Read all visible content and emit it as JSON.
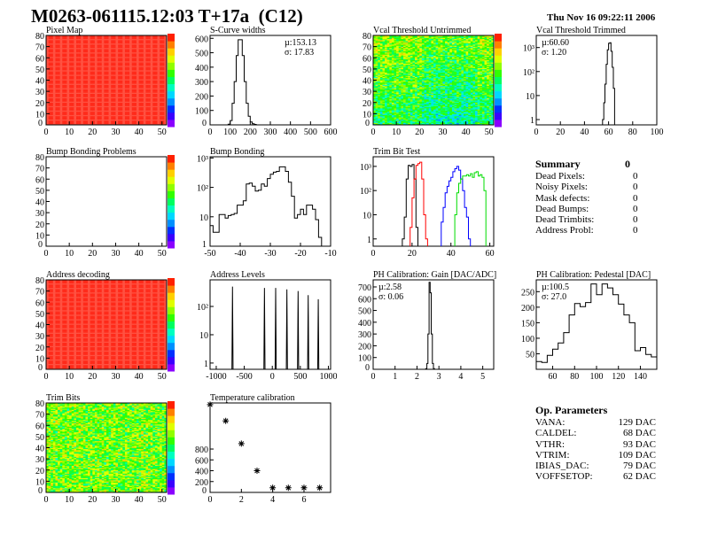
{
  "header": {
    "title": "M0263-061115.12:03 T+17a  (C12)",
    "date": "Thu Nov 16 09:22:11 2006"
  },
  "summary": {
    "title": "Summary",
    "total": "0",
    "rows": [
      {
        "label": "Dead Pixels:",
        "value": "0"
      },
      {
        "label": "Noisy Pixels:",
        "value": "0"
      },
      {
        "label": "Mask defects:",
        "value": "0"
      },
      {
        "label": "Dead Bumps:",
        "value": "0"
      },
      {
        "label": "Dead Trimbits:",
        "value": "0"
      },
      {
        "label": "Address Probl:",
        "value": "0"
      }
    ]
  },
  "op_parameters": {
    "title": "Op. Parameters",
    "rows": [
      {
        "label": "VANA:",
        "value": "129 DAC"
      },
      {
        "label": "CALDEL:",
        "value": "68 DAC"
      },
      {
        "label": "VTHR:",
        "value": "93 DAC"
      },
      {
        "label": "VTRIM:",
        "value": "109 DAC"
      },
      {
        "label": "IBIAS_DAC:",
        "value": "79 DAC"
      },
      {
        "label": "VOFFSETOP:",
        "value": "62 DAC"
      }
    ]
  },
  "chart_data": [
    {
      "type": "heatmap",
      "title": "Pixel Map",
      "xlim": [
        0,
        52
      ],
      "ylim": [
        0,
        80
      ],
      "xticks": [
        "0",
        "10",
        "20",
        "30",
        "40",
        "50"
      ],
      "yticks": [
        "0",
        "10",
        "20",
        "30",
        "40",
        "50",
        "60",
        "70",
        "80"
      ],
      "colorbar": true,
      "fill": "uniform",
      "color": "#ff2a1a"
    },
    {
      "type": "bar",
      "title": "S-Curve widths",
      "xlim": [
        0,
        600
      ],
      "ylim": [
        0,
        620
      ],
      "xticks": [
        "0",
        "100",
        "200",
        "300",
        "400",
        "500",
        "600"
      ],
      "yticks": [
        "0",
        "100",
        "200",
        "300",
        "400",
        "500",
        "600"
      ],
      "stats": [
        "µ:153.13",
        "σ: 17.83"
      ],
      "bin_width": 10,
      "x": [
        90,
        100,
        110,
        120,
        130,
        140,
        150,
        160,
        170,
        180,
        190,
        200,
        210,
        220
      ],
      "values": [
        5,
        30,
        150,
        300,
        480,
        590,
        590,
        480,
        300,
        150,
        60,
        20,
        8,
        3
      ]
    },
    {
      "type": "heatmap",
      "title": "Vcal Threshold Untrimmed",
      "xlim": [
        0,
        52
      ],
      "ylim": [
        0,
        80
      ],
      "xticks": [
        "0",
        "10",
        "20",
        "30",
        "40",
        "50"
      ],
      "yticks": [
        "0",
        "10",
        "20",
        "30",
        "40",
        "50",
        "60",
        "70",
        "80"
      ],
      "colorbar": true,
      "fill": "noisy-green-cyan"
    },
    {
      "type": "bar",
      "title": "Vcal Threshold Trimmed",
      "log_y": true,
      "xlim": [
        0,
        100
      ],
      "ylim": [
        0.6,
        3200
      ],
      "xticks": [
        "0",
        "20",
        "40",
        "60",
        "80",
        "100"
      ],
      "yticks": [
        {
          "v": 1,
          "t": "1"
        },
        {
          "v": 10,
          "t": "10"
        },
        {
          "v": 100,
          "t": "10²"
        },
        {
          "v": 1000,
          "t": "10³"
        }
      ],
      "stats": [
        "µ:60.60",
        "σ: 1.20"
      ],
      "bin_width": 1,
      "x": [
        55,
        56,
        57,
        58,
        59,
        60,
        61,
        62,
        63,
        64
      ],
      "values": [
        1,
        5,
        30,
        200,
        800,
        1500,
        1600,
        700,
        150,
        20
      ]
    },
    {
      "type": "heatmap",
      "title": "Bump Bonding Problems",
      "xlim": [
        0,
        52
      ],
      "ylim": [
        0,
        80
      ],
      "xticks": [
        "0",
        "10",
        "20",
        "30",
        "40",
        "50"
      ],
      "yticks": [
        "0",
        "10",
        "20",
        "30",
        "40",
        "50",
        "60",
        "70",
        "80"
      ],
      "colorbar": true,
      "fill": "empty"
    },
    {
      "type": "bar",
      "title": "Bump Bonding",
      "log_y": true,
      "xlim": [
        -50,
        -10
      ],
      "ylim": [
        1,
        1100
      ],
      "xticks": [
        "-50",
        "-40",
        "-30",
        "-20",
        "-10"
      ],
      "yticks": [
        {
          "v": 1,
          "t": "1"
        },
        {
          "v": 10,
          "t": "10"
        },
        {
          "v": 100,
          "t": "10²"
        },
        {
          "v": 1000,
          "t": "10³"
        }
      ],
      "bin_width": 1,
      "x": [
        -50,
        -49,
        -48,
        -47,
        -46,
        -45,
        -44,
        -43,
        -42,
        -41,
        -40,
        -39,
        -38,
        -37,
        -36,
        -35,
        -34,
        -33,
        -32,
        -31,
        -30,
        -29,
        -28,
        -27,
        -26,
        -25,
        -24,
        -23,
        -22,
        -21,
        -20,
        -19,
        -18,
        -17,
        -16,
        -15,
        -14,
        -13
      ],
      "values": [
        5,
        3,
        3,
        12,
        12,
        9,
        11,
        12,
        13,
        25,
        25,
        35,
        130,
        140,
        110,
        75,
        80,
        130,
        110,
        200,
        280,
        330,
        350,
        500,
        500,
        350,
        150,
        50,
        9,
        12,
        18,
        12,
        25,
        25,
        18,
        8,
        2,
        1
      ]
    },
    {
      "type": "bar",
      "title": "Trim Bit Test",
      "log_y": true,
      "xlim": [
        0,
        62
      ],
      "ylim": [
        0.5,
        2500
      ],
      "xticks": [
        "0",
        "20",
        "40",
        "60"
      ],
      "yticks": [
        {
          "v": 1,
          "t": "1"
        },
        {
          "v": 10,
          "t": "10"
        },
        {
          "v": 100,
          "t": "10²"
        },
        {
          "v": 1000,
          "t": "10³"
        }
      ],
      "bin_width": 1,
      "series": [
        {
          "color": "#000000",
          "x": [
            15,
            16,
            17,
            18,
            19,
            20,
            21,
            22
          ],
          "values": [
            1,
            8,
            300,
            1100,
            1000,
            1200,
            300,
            3
          ]
        },
        {
          "color": "#ff0000",
          "x": [
            19,
            20,
            21,
            22,
            23,
            24,
            25,
            26,
            27
          ],
          "values": [
            3,
            50,
            300,
            1100,
            1300,
            1500,
            300,
            10,
            1
          ]
        },
        {
          "color": "#0000ff",
          "x": [
            35,
            36,
            37,
            38,
            39,
            40,
            41,
            42,
            43,
            44,
            45,
            46,
            47,
            48,
            49
          ],
          "values": [
            5,
            20,
            80,
            150,
            250,
            350,
            600,
            800,
            1000,
            700,
            300,
            100,
            20,
            8,
            1
          ]
        },
        {
          "color": "#00dd00",
          "x": [
            42,
            43,
            44,
            45,
            46,
            47,
            48,
            49,
            50,
            51,
            52,
            53,
            54,
            55,
            56,
            57
          ],
          "values": [
            10,
            80,
            200,
            300,
            400,
            400,
            450,
            400,
            500,
            350,
            550,
            600,
            400,
            450,
            350,
            100
          ]
        }
      ]
    },
    {
      "type": "heatmap",
      "title": "Address decoding",
      "xlim": [
        0,
        52
      ],
      "ylim": [
        0,
        80
      ],
      "xticks": [
        "0",
        "10",
        "20",
        "30",
        "40",
        "50"
      ],
      "yticks": [
        "0",
        "10",
        "20",
        "30",
        "40",
        "50",
        "60",
        "70",
        "80"
      ],
      "colorbar": true,
      "fill": "uniform",
      "color": "#ff2a1a"
    },
    {
      "type": "bar",
      "title": "Address Levels",
      "log_y": true,
      "xlim": [
        -1110,
        1040
      ],
      "ylim": [
        0.6,
        870
      ],
      "xticks": [
        {
          "v": -1000,
          "t": "-1000"
        },
        {
          "v": -500,
          "t": "-500"
        },
        {
          "v": 0,
          "t": "0"
        },
        {
          "v": 500,
          "t": "500"
        },
        {
          "v": 1000,
          "t": "1000"
        }
      ],
      "yticks": [
        {
          "v": 1,
          "t": "1"
        },
        {
          "v": 10,
          "t": "10"
        },
        {
          "v": 100,
          "t": "10²"
        }
      ],
      "bin_width": 20,
      "x": [
        -710,
        -140,
        60,
        260,
        460,
        640,
        820
      ],
      "values": [
        500,
        450,
        450,
        400,
        350,
        250,
        180
      ]
    },
    {
      "type": "bar",
      "title": "PH Calibration: Gain [DAC/ADC]",
      "xlim": [
        0,
        5.5
      ],
      "ylim": [
        0,
        760
      ],
      "xticks": [
        "0",
        "1",
        "2",
        "3",
        "4",
        "5"
      ],
      "yticks": [
        "0",
        "100",
        "200",
        "300",
        "400",
        "500",
        "600",
        "700"
      ],
      "stats": [
        "µ:2.58",
        "σ: 0.06"
      ],
      "bin_width": 0.05,
      "x": [
        2.4,
        2.45,
        2.5,
        2.55,
        2.6,
        2.65,
        2.7,
        2.75
      ],
      "values": [
        5,
        50,
        300,
        740,
        650,
        300,
        50,
        5
      ]
    },
    {
      "type": "bar",
      "title": "PH Calibration: Pedestal [DAC]",
      "xlim": [
        45,
        155
      ],
      "ylim": [
        0,
        288
      ],
      "xticks": [
        {
          "v": 60,
          "t": "60"
        },
        {
          "v": 80,
          "t": "80"
        },
        {
          "v": 100,
          "t": "100"
        },
        {
          "v": 120,
          "t": "120"
        },
        {
          "v": 140,
          "t": "140"
        }
      ],
      "yticks": [
        {
          "v": 50,
          "t": "50"
        },
        {
          "v": 100,
          "t": "100"
        },
        {
          "v": 150,
          "t": "150"
        },
        {
          "v": 200,
          "t": "200"
        },
        {
          "v": 250,
          "t": "250"
        }
      ],
      "stats": [
        "µ:100.5",
        "σ: 27.0"
      ],
      "bin_width": 5,
      "x": [
        45,
        50,
        55,
        60,
        65,
        70,
        75,
        80,
        85,
        90,
        95,
        100,
        105,
        110,
        115,
        120,
        125,
        130,
        135,
        140,
        145,
        150
      ],
      "values": [
        25,
        22,
        45,
        65,
        85,
        118,
        175,
        212,
        202,
        215,
        275,
        240,
        275,
        262,
        240,
        210,
        175,
        150,
        60,
        70,
        48,
        40
      ]
    },
    {
      "type": "heatmap",
      "title": "Trim Bits",
      "xlim": [
        0,
        52
      ],
      "ylim": [
        0,
        80
      ],
      "xticks": [
        "0",
        "10",
        "20",
        "30",
        "40",
        "50"
      ],
      "yticks": [
        "0",
        "10",
        "20",
        "30",
        "40",
        "50",
        "60",
        "70",
        "80"
      ],
      "colorbar": true,
      "fill": "noisy-green-yellow"
    },
    {
      "type": "scatter",
      "title": "Temperature calibration",
      "xlim": [
        0,
        7.7
      ],
      "ylim": [
        0,
        1650
      ],
      "xticks": [
        {
          "v": 0,
          "t": "0"
        },
        {
          "v": 2,
          "t": "2"
        },
        {
          "v": 4,
          "t": "4"
        },
        {
          "v": 6,
          "t": "6"
        }
      ],
      "yticks": [
        {
          "v": 0,
          "t": "0"
        },
        {
          "v": 200,
          "t": "200"
        },
        {
          "v": 400,
          "t": "400"
        },
        {
          "v": 600,
          "t": "600"
        },
        {
          "v": 800,
          "t": "800"
        }
      ],
      "x": [
        0,
        1,
        2,
        3,
        4,
        5,
        6,
        7
      ],
      "values": [
        1620,
        1320,
        900,
        400,
        85,
        85,
        85,
        85
      ]
    }
  ]
}
